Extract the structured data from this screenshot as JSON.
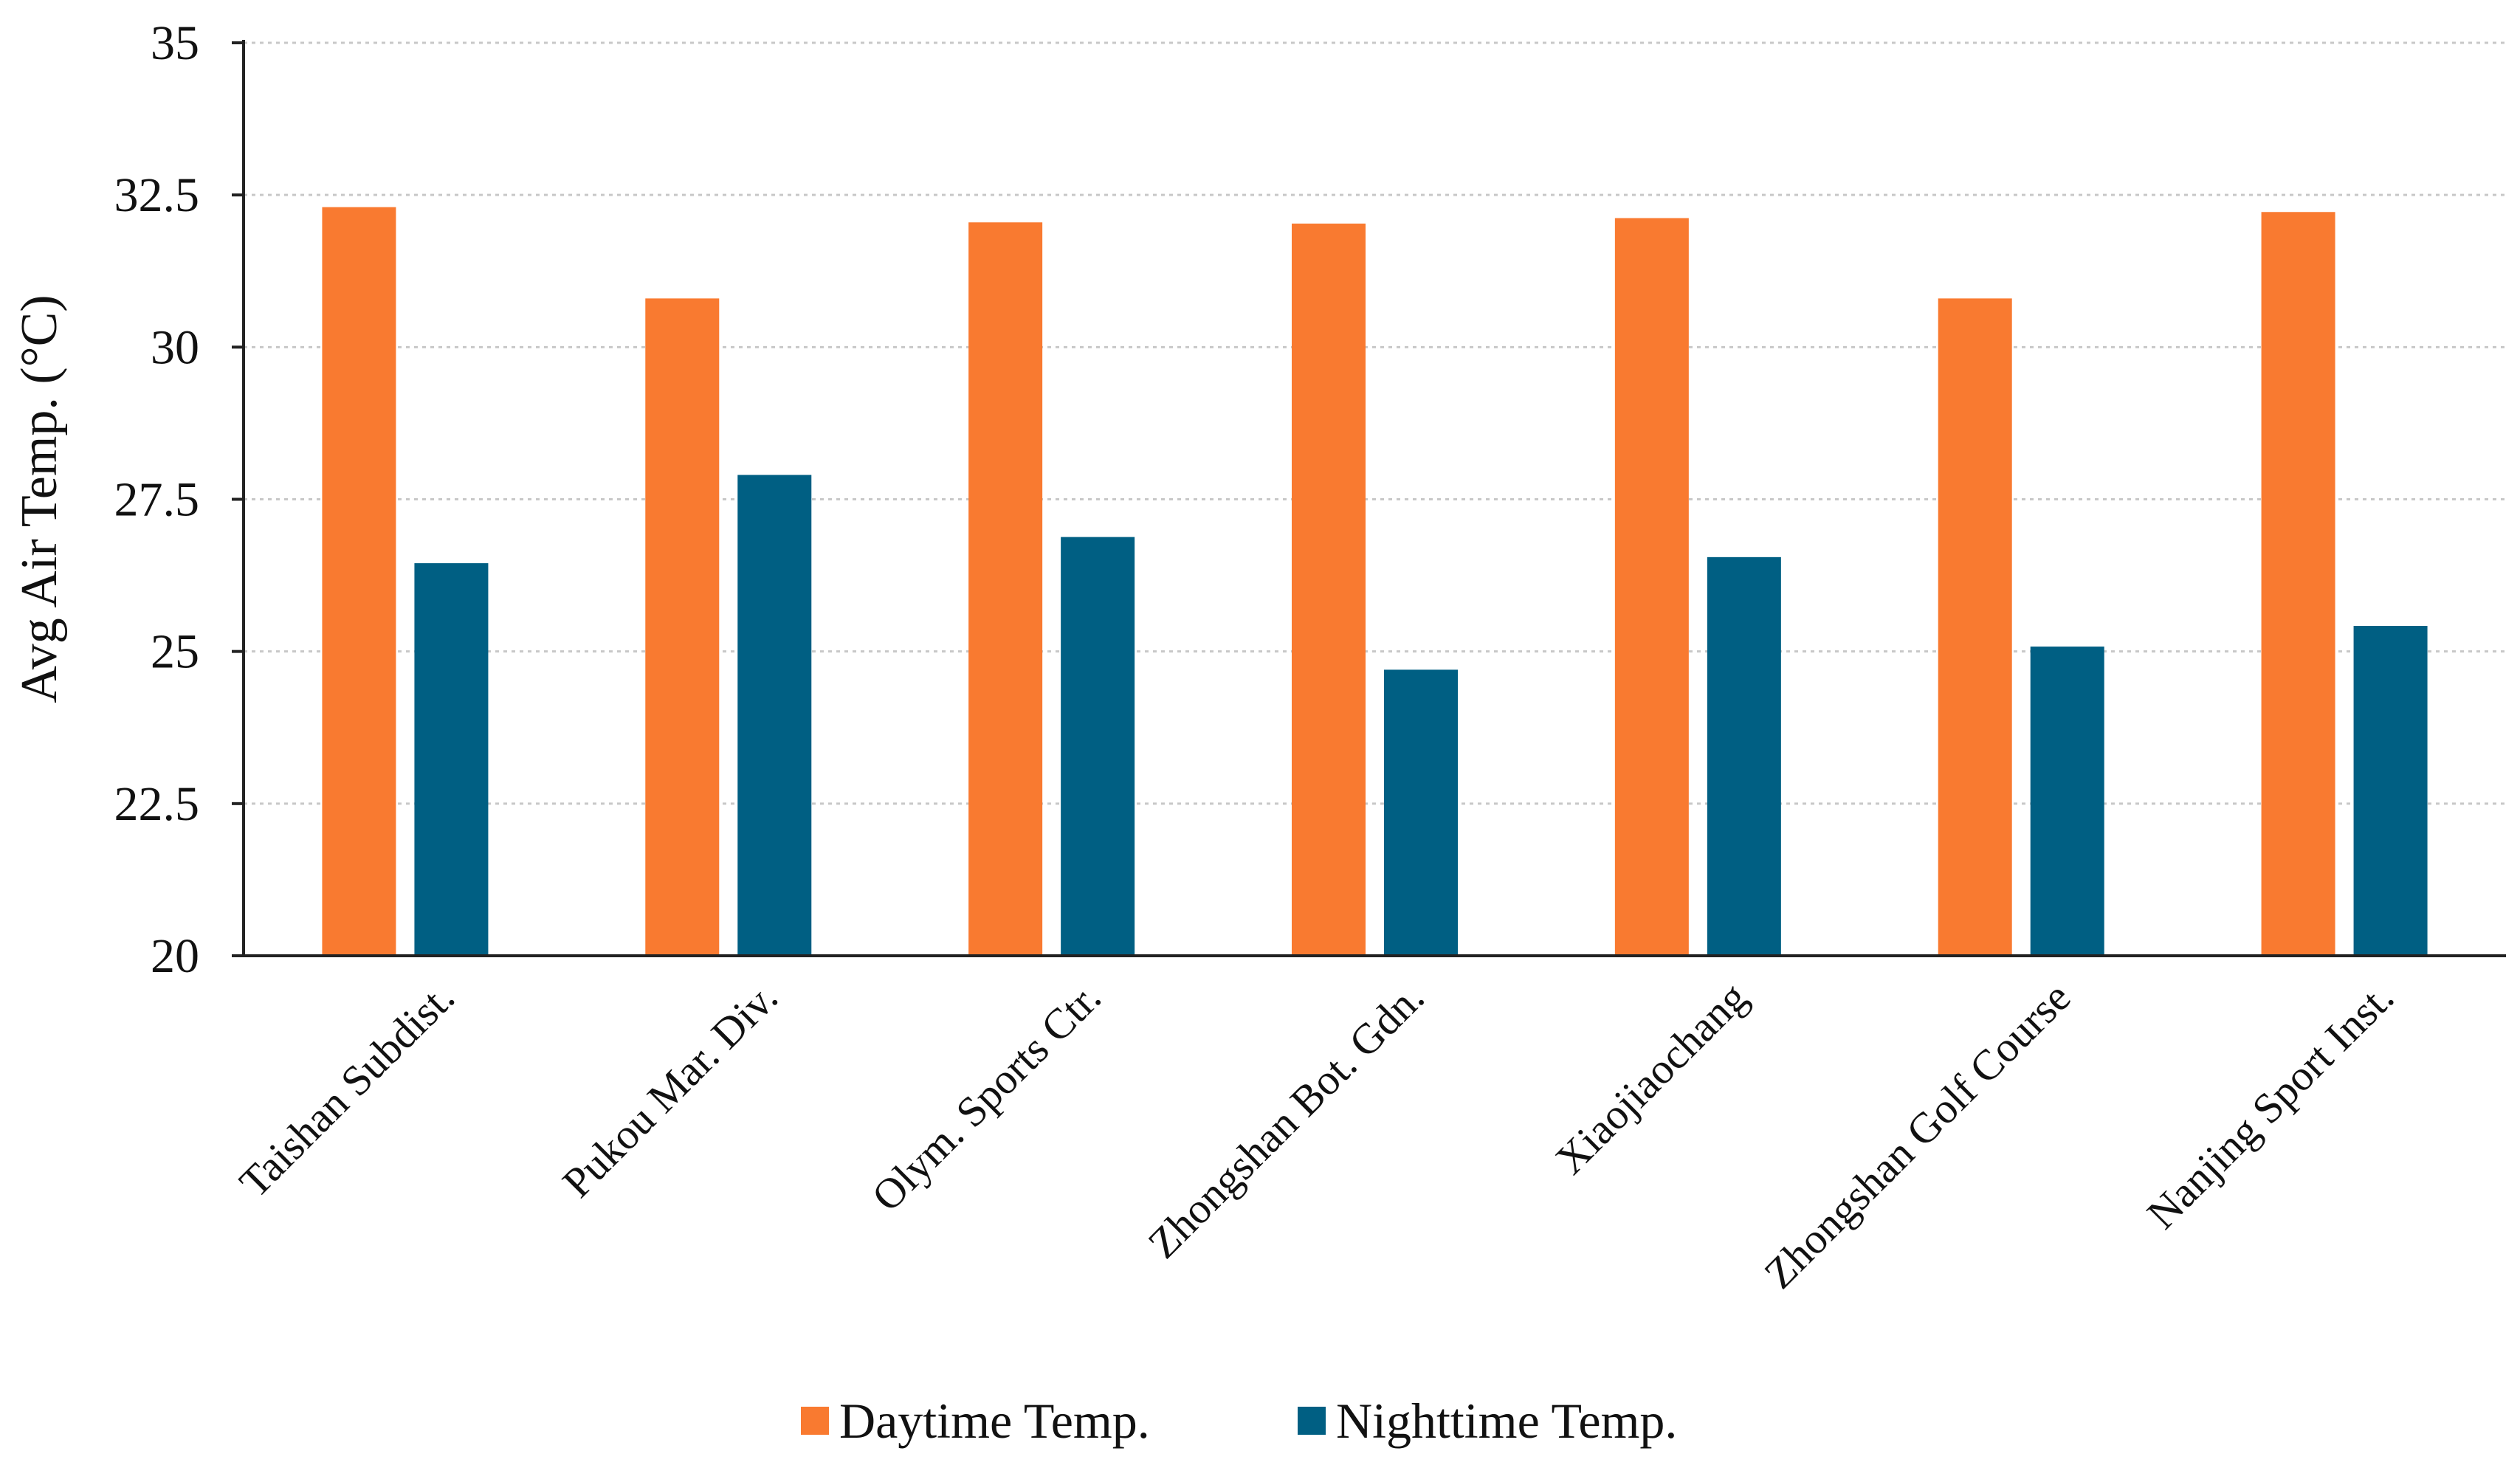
{
  "chart_data": {
    "type": "bar",
    "title": "",
    "xlabel": "",
    "ylabel": "Avg Air Temp. (°C)",
    "ylim": [
      20,
      35
    ],
    "yticks": [
      "20",
      "22.5",
      "25",
      "27.5",
      "30",
      "32.5",
      "35"
    ],
    "grid": true,
    "legend_position": "bottom-center",
    "categories": [
      "Taishan Subdist.",
      "Pukou Mar. Div.",
      "Olym. Sports Ctr.",
      "Zhongshan Bot. Gdn.",
      "Xiaojiaochang",
      "Zhongshan Golf Course",
      "Nanjing Sport Inst."
    ],
    "series": [
      {
        "name": "Daytime Temp.",
        "color": "#F97A30",
        "values": [
          32.3,
          30.8,
          32.05,
          32.03,
          32.12,
          30.8,
          32.22
        ]
      },
      {
        "name": "Nighttime Temp.",
        "color": "#005F83",
        "values": [
          26.45,
          27.9,
          26.88,
          24.7,
          26.55,
          25.08,
          25.42
        ]
      }
    ]
  }
}
